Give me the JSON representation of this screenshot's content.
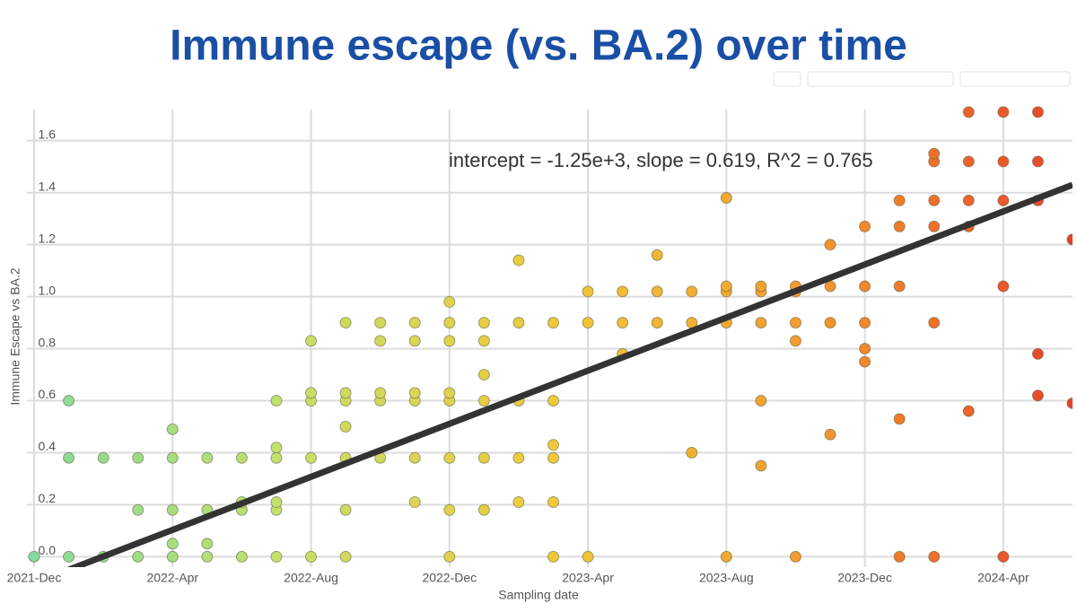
{
  "chart_data": {
    "type": "scatter",
    "title": "Immune escape (vs. BA.2) over time",
    "annotation": "intercept = -1.25e+3, slope = 0.619, R^2 = 0.765",
    "xlabel": "Sampling date",
    "ylabel": "Immune Escape vs BA.2",
    "xlim": [
      "2021-12",
      "2024-06"
    ],
    "ylim": [
      -0.04,
      1.72
    ],
    "xticks": [
      {
        "value": "2021-12",
        "label": "2021-Dec"
      },
      {
        "value": "2022-04",
        "label": "2022-Apr"
      },
      {
        "value": "2022-08",
        "label": "2022-Aug"
      },
      {
        "value": "2022-12",
        "label": "2022-Dec"
      },
      {
        "value": "2023-04",
        "label": "2023-Apr"
      },
      {
        "value": "2023-08",
        "label": "2023-Aug"
      },
      {
        "value": "2023-12",
        "label": "2023-Dec"
      },
      {
        "value": "2024-04",
        "label": "2024-Apr"
      }
    ],
    "yticks": [
      {
        "value": 0,
        "label": "0.0"
      },
      0.2,
      0.4,
      0.6,
      0.8,
      {
        "value": 1,
        "label": "1.0"
      },
      1.2,
      1.4,
      1.6
    ],
    "grid": true,
    "colorscale": [
      "#86d99a",
      "#c6e06a",
      "#f0c93a",
      "#f39a2c",
      "#e8402a"
    ],
    "x": [
      "2021-12",
      "2022-01",
      "2022-02",
      "2022-03",
      "2022-04",
      "2022-05",
      "2022-06",
      "2022-07",
      "2022-08",
      "2022-09",
      "2022-12",
      "2023-03",
      "2023-04",
      "2023-08",
      "2023-10",
      "2024-01",
      "2024-02",
      "2024-04",
      "2022-04",
      "2022-05",
      "2022-03",
      "2022-04",
      "2022-05",
      "2022-06",
      "2022-07",
      "2022-09",
      "2022-12",
      "2023-01",
      "2022-06",
      "2022-07",
      "2022-11",
      "2023-02",
      "2023-03",
      "2022-01",
      "2022-02",
      "2022-03",
      "2022-04",
      "2022-05",
      "2022-06",
      "2022-07",
      "2022-08",
      "2022-09",
      "2022-10",
      "2022-11",
      "2022-12",
      "2023-01",
      "2023-02",
      "2023-03",
      "2022-01",
      "2022-07",
      "2022-08",
      "2022-09",
      "2022-10",
      "2022-11",
      "2022-12",
      "2023-01",
      "2023-02",
      "2023-03",
      "2022-08",
      "2022-09",
      "2022-10",
      "2022-11",
      "2022-12",
      "2022-08",
      "2022-10",
      "2022-11",
      "2022-12",
      "2023-01",
      "2022-09",
      "2022-10",
      "2022-11",
      "2022-12",
      "2023-01",
      "2023-02",
      "2023-03",
      "2023-04",
      "2023-05",
      "2023-06",
      "2023-07",
      "2023-08",
      "2023-09",
      "2023-10",
      "2023-11",
      "2023-12",
      "2023-04",
      "2023-05",
      "2023-06",
      "2023-07",
      "2023-08",
      "2023-09",
      "2023-10",
      "2023-08",
      "2023-09",
      "2023-10",
      "2023-11",
      "2023-12",
      "2024-01",
      "2023-12",
      "2024-01",
      "2024-02",
      "2024-03",
      "2024-01",
      "2024-02",
      "2024-03",
      "2024-04",
      "2024-05",
      "2024-02",
      "2024-03",
      "2024-04",
      "2024-05",
      "2024-03",
      "2024-04",
      "2024-05",
      "2022-04",
      "2022-07",
      "2022-09",
      "2022-12",
      "2023-01",
      "2023-02",
      "2023-03",
      "2023-05",
      "2023-06",
      "2023-07",
      "2023-08",
      "2023-09",
      "2023-10",
      "2023-11",
      "2023-12",
      "2024-01",
      "2024-02",
      "2024-03",
      "2024-04",
      "2024-05",
      "2024-06",
      "2024-06",
      "2024-05",
      "2023-11",
      "2023-12",
      "2024-02",
      "2023-09"
    ],
    "values": [
      0,
      0,
      0,
      0,
      0,
      0,
      0,
      0,
      0,
      0,
      0,
      0,
      0,
      0,
      0,
      0,
      0,
      0,
      0.05,
      0.05,
      0.18,
      0.18,
      0.18,
      0.18,
      0.18,
      0.18,
      0.18,
      0.18,
      0.21,
      0.21,
      0.21,
      0.21,
      0.21,
      0.38,
      0.38,
      0.38,
      0.38,
      0.38,
      0.38,
      0.38,
      0.38,
      0.38,
      0.38,
      0.38,
      0.38,
      0.38,
      0.38,
      0.38,
      0.6,
      0.6,
      0.6,
      0.6,
      0.6,
      0.6,
      0.6,
      0.6,
      0.6,
      0.6,
      0.63,
      0.63,
      0.63,
      0.63,
      0.63,
      0.83,
      0.83,
      0.83,
      0.83,
      0.83,
      0.9,
      0.9,
      0.9,
      0.9,
      0.9,
      0.9,
      0.9,
      0.9,
      0.9,
      0.9,
      0.9,
      0.9,
      0.9,
      0.9,
      0.9,
      0.9,
      1.02,
      1.02,
      1.02,
      1.02,
      1.02,
      1.02,
      1.02,
      1.04,
      1.04,
      1.04,
      1.04,
      1.04,
      1.04,
      1.27,
      1.27,
      1.27,
      1.27,
      1.37,
      1.37,
      1.37,
      1.37,
      1.37,
      1.52,
      1.52,
      1.52,
      1.52,
      1.71,
      1.71,
      1.71,
      0.49,
      0.42,
      0.5,
      0.98,
      0.7,
      1.14,
      0.43,
      0.78,
      1.16,
      0.4,
      1.38,
      0.6,
      0.83,
      1.2,
      0.75,
      0.53,
      1.55,
      0.56,
      1.04,
      0.62,
      0.59,
      1.22,
      0.78,
      0.47,
      0.8,
      0.9,
      0.35
    ],
    "trendline": {
      "x": [
        "2022-01",
        "2024-06"
      ],
      "values": [
        -0.05,
        1.43
      ],
      "color": "#333333"
    }
  }
}
